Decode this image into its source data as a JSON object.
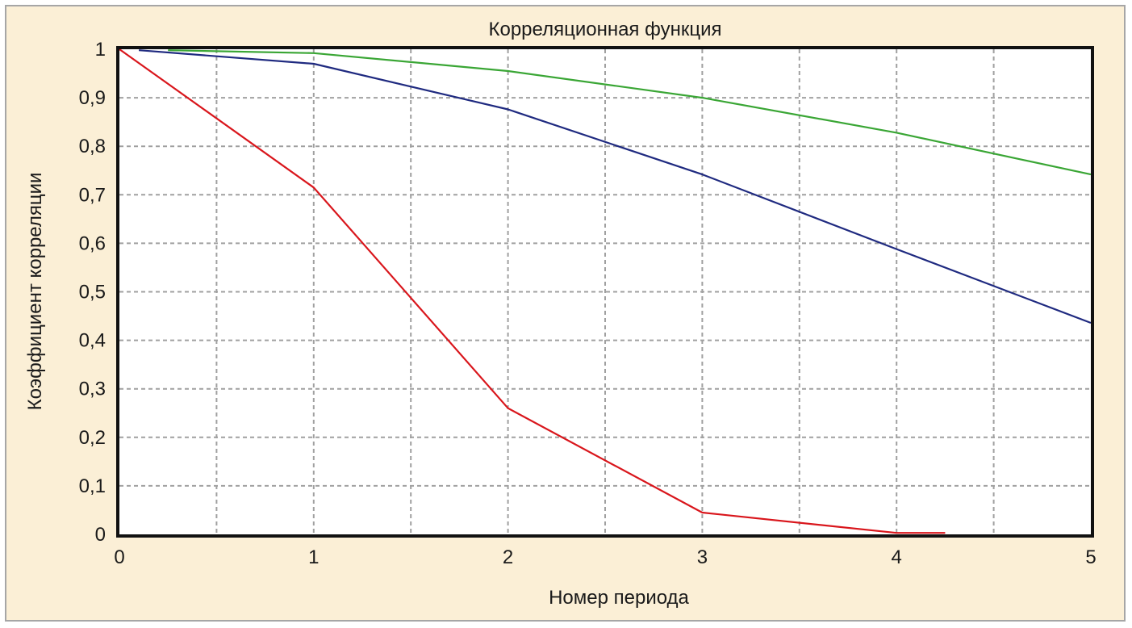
{
  "chart_data": {
    "type": "line",
    "title": "Корреляционная функция",
    "xlabel": "Номер периода",
    "ylabel": "Коэффициент корреляции",
    "xlim": [
      0,
      5
    ],
    "ylim": [
      0,
      1
    ],
    "x_ticks": [
      "0",
      "1",
      "2",
      "3",
      "4",
      "5"
    ],
    "y_ticks": [
      "0",
      "0,1",
      "0,2",
      "0,3",
      "0,4",
      "0,5",
      "0,6",
      "0,7",
      "0,8",
      "0,9",
      "1"
    ],
    "grid": true,
    "legend": "none",
    "series": [
      {
        "color": "#d9161c",
        "points": [
          [
            0,
            1.0
          ],
          [
            1,
            0.715
          ],
          [
            2,
            0.26
          ],
          [
            3,
            0.045
          ],
          [
            4,
            0.003
          ],
          [
            4.25,
            0.003
          ]
        ]
      },
      {
        "color": "#1f2a80",
        "points": [
          [
            0.1,
            0.998
          ],
          [
            1,
            0.97
          ],
          [
            2,
            0.876
          ],
          [
            3,
            0.742
          ],
          [
            4,
            0.588
          ],
          [
            5,
            0.436
          ]
        ]
      },
      {
        "color": "#3aa635",
        "points": [
          [
            0.25,
            0.998
          ],
          [
            1,
            0.992
          ],
          [
            2,
            0.955
          ],
          [
            3,
            0.9
          ],
          [
            4,
            0.828
          ],
          [
            5,
            0.742
          ]
        ]
      }
    ]
  }
}
